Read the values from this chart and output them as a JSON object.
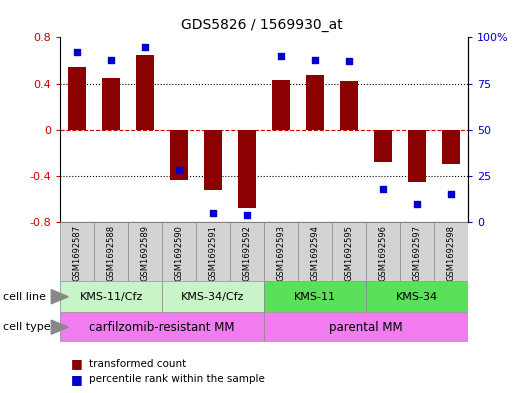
{
  "title": "GDS5826 / 1569930_at",
  "samples": [
    "GSM1692587",
    "GSM1692588",
    "GSM1692589",
    "GSM1692590",
    "GSM1692591",
    "GSM1692592",
    "GSM1692593",
    "GSM1692594",
    "GSM1692595",
    "GSM1692596",
    "GSM1692597",
    "GSM1692598"
  ],
  "bar_values": [
    0.54,
    0.45,
    0.65,
    -0.44,
    -0.52,
    -0.68,
    0.43,
    0.47,
    0.42,
    -0.28,
    -0.45,
    -0.3
  ],
  "percentile_values": [
    92,
    88,
    95,
    28,
    5,
    4,
    90,
    88,
    87,
    18,
    10,
    15
  ],
  "bar_color": "#8B0000",
  "dot_color": "#0000CD",
  "ylim_left": [
    -0.8,
    0.8
  ],
  "ylim_right": [
    0,
    100
  ],
  "yticks_left": [
    -0.8,
    -0.4,
    0,
    0.4,
    0.8
  ],
  "yticks_right": [
    0,
    25,
    50,
    75,
    100
  ],
  "ytick_labels_left": [
    "-0.8",
    "-0.4",
    "0",
    "0.4",
    "0.8"
  ],
  "ytick_labels_right": [
    "0",
    "25",
    "50",
    "75",
    "100%"
  ],
  "cell_line_groups": [
    {
      "label": "KMS-11/Cfz",
      "start": 0,
      "end": 3,
      "color": "#C8F5C8"
    },
    {
      "label": "KMS-34/Cfz",
      "start": 3,
      "end": 6,
      "color": "#C8F5C8"
    },
    {
      "label": "KMS-11",
      "start": 6,
      "end": 9,
      "color": "#5AE05A"
    },
    {
      "label": "KMS-34",
      "start": 9,
      "end": 12,
      "color": "#5AE05A"
    }
  ],
  "cell_type_groups": [
    {
      "label": "carfilzomib-resistant MM",
      "start": 0,
      "end": 6,
      "color": "#F07CF0"
    },
    {
      "label": "parental MM",
      "start": 6,
      "end": 12,
      "color": "#F07CF0"
    }
  ],
  "legend_items": [
    {
      "label": "transformed count",
      "color": "#8B0000"
    },
    {
      "label": "percentile rank within the sample",
      "color": "#0000CD"
    }
  ],
  "zero_line_color": "#CC0000",
  "dotted_line_color": "#000000",
  "sample_box_color": "#D3D3D3",
  "sample_box_border": "#888888"
}
